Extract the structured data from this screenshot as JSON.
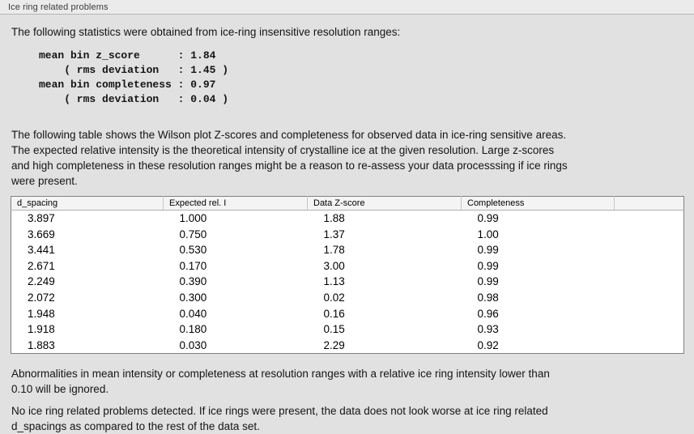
{
  "header": {
    "title": "Ice ring related problems"
  },
  "intro": {
    "text": "The following statistics were obtained from ice-ring insensitive resolution ranges:",
    "stats_block": "mean bin z_score      : 1.84\n    ( rms deviation   : 1.45 )\nmean bin completeness : 0.97\n    ( rms deviation   : 0.04 )",
    "stats": {
      "mean_bin_z_score": "1.84",
      "z_score_rms_deviation": "1.45",
      "mean_bin_completeness": "0.97",
      "completeness_rms_deviation": "0.04"
    }
  },
  "description": {
    "text": "The following table shows the Wilson plot Z-scores and completeness for observed data in ice-ring sensitive areas.\nThe expected relative intensity is the theoretical intensity of crystalline ice at the given resolution. Large z-scores\nand high completeness in these resolution ranges might be a reason to re-assess your data processsing if ice rings\nwere present."
  },
  "table": {
    "columns": [
      "d_spacing",
      "Expected rel. I",
      "Data Z-score",
      "Completeness",
      ""
    ],
    "rows": [
      [
        "3.897",
        "1.000",
        "1.88",
        "0.99"
      ],
      [
        "3.669",
        "0.750",
        "1.37",
        "1.00"
      ],
      [
        "3.441",
        "0.530",
        "1.78",
        "0.99"
      ],
      [
        "2.671",
        "0.170",
        "3.00",
        "0.99"
      ],
      [
        "2.249",
        "0.390",
        "1.13",
        "0.99"
      ],
      [
        "2.072",
        "0.300",
        "0.02",
        "0.98"
      ],
      [
        "1.948",
        "0.040",
        "0.16",
        "0.96"
      ],
      [
        "1.918",
        "0.180",
        "0.15",
        "0.93"
      ],
      [
        "1.883",
        "0.030",
        "2.29",
        "0.92"
      ]
    ]
  },
  "notes": {
    "ignore_note": "Abnormalities in mean intensity or completeness at resolution ranges with a relative ice ring intensity lower than\n0.10 will be ignored.",
    "conclusion": "No ice ring related problems detected. If ice rings were present, the data does not look worse at ice ring related\nd_spacings as compared to the rest of the data set."
  }
}
